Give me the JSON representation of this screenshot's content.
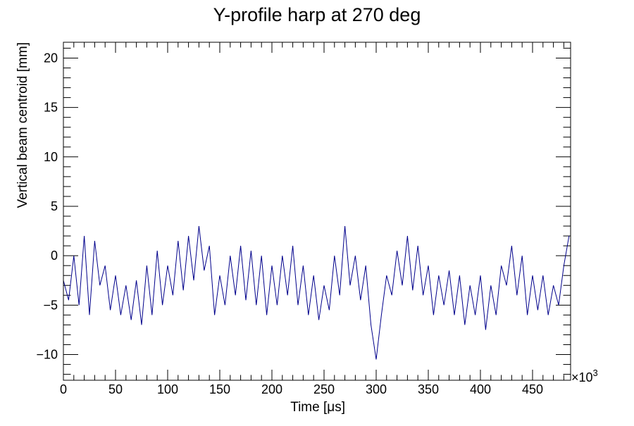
{
  "chart_data": {
    "type": "line",
    "title": "Y-profile harp at 270 deg",
    "xlabel": "Time [μs]",
    "ylabel": "Vertical beam centroid [mm]",
    "x_multiplier": "×10",
    "x_multiplier_exp": "3",
    "xlim": [
      0,
      486.5
    ],
    "ylim": [
      -12.6,
      21.6
    ],
    "xticks": [
      0,
      50,
      100,
      150,
      200,
      250,
      300,
      350,
      400,
      450
    ],
    "yticks": [
      -10,
      -5,
      0,
      5,
      10,
      15,
      20
    ],
    "ytick_labels": [
      "−10",
      "−5",
      "0",
      "5",
      "10",
      "15",
      "20"
    ],
    "grid": false,
    "line_color": "#00008b",
    "series": [
      {
        "name": "centroid",
        "x": [
          0,
          5,
          10,
          15,
          20,
          25,
          30,
          35,
          40,
          45,
          50,
          55,
          60,
          65,
          70,
          75,
          80,
          85,
          90,
          95,
          100,
          105,
          110,
          115,
          120,
          125,
          130,
          135,
          140,
          145,
          150,
          155,
          160,
          165,
          170,
          175,
          180,
          185,
          190,
          195,
          200,
          205,
          210,
          215,
          220,
          225,
          230,
          235,
          240,
          245,
          250,
          255,
          260,
          265,
          270,
          275,
          280,
          285,
          290,
          295,
          300,
          305,
          310,
          315,
          320,
          325,
          330,
          335,
          340,
          345,
          350,
          355,
          360,
          365,
          370,
          375,
          380,
          385,
          390,
          395,
          400,
          405,
          410,
          415,
          420,
          425,
          430,
          435,
          440,
          445,
          450,
          455,
          460,
          465,
          470,
          475,
          480,
          485
        ],
        "y": [
          -2.5,
          -4.5,
          0,
          -5,
          2,
          -6,
          1.5,
          -3,
          -1,
          -5.5,
          -2,
          -6,
          -3,
          -6.5,
          -2.5,
          -7,
          -1,
          -6,
          0.5,
          -5,
          -1,
          -4,
          1.5,
          -3.5,
          2,
          -2.5,
          3,
          -1.5,
          1,
          -6,
          -2,
          -5,
          0,
          -4,
          1,
          -4.5,
          0.5,
          -5,
          0,
          -6,
          -1,
          -5,
          0,
          -4,
          1,
          -5,
          -1,
          -6,
          -2,
          -6.5,
          -3,
          -5.5,
          0,
          -4,
          3,
          -3,
          0,
          -4.5,
          -1,
          -7,
          -10.5,
          -6,
          -2,
          -4,
          0.5,
          -3,
          2,
          -3.5,
          1,
          -4,
          -1,
          -6,
          -2,
          -5,
          -1.5,
          -6,
          -2,
          -7,
          -3,
          -6,
          -2,
          -7.5,
          -3,
          -6,
          -1,
          -3,
          1,
          -4,
          0,
          -6,
          -2,
          -5.5,
          -2,
          -6,
          -3,
          -5,
          -1,
          2
        ]
      }
    ]
  }
}
